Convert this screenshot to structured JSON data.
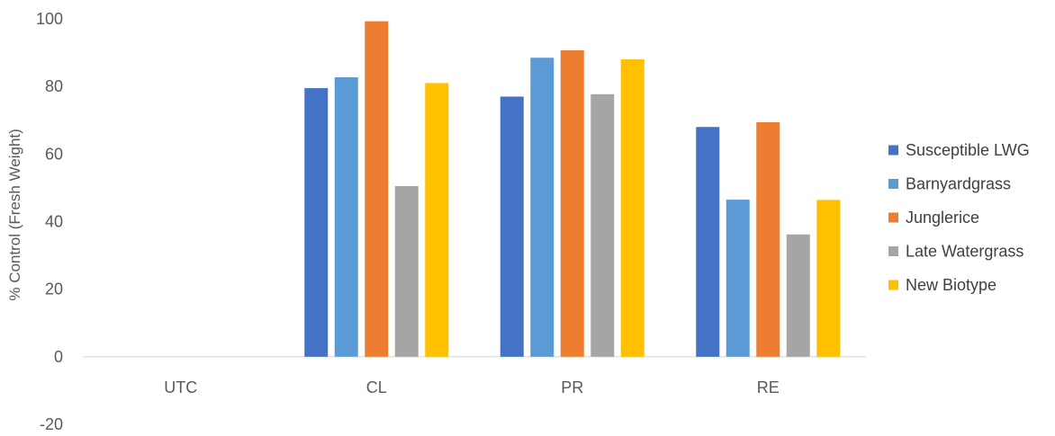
{
  "chart_data": {
    "type": "bar",
    "title": "",
    "xlabel": "",
    "ylabel": "% Control (Fresh Weight)",
    "categories": [
      "UTC",
      "CL",
      "PR",
      "RE"
    ],
    "series": [
      {
        "name": "Susceptible LWG",
        "color": "#4472C4",
        "values": [
          0,
          79.5,
          77,
          68
        ]
      },
      {
        "name": "Barnyardgrass",
        "color": "#5B9BD5",
        "values": [
          0,
          82.7,
          88.5,
          46.5
        ]
      },
      {
        "name": "Junglerice",
        "color": "#ED7D31",
        "values": [
          0,
          99.3,
          90.7,
          69.4
        ]
      },
      {
        "name": "Late Watergrass",
        "color": "#A5A5A5",
        "values": [
          0,
          50.5,
          77.7,
          36.2
        ]
      },
      {
        "name": "New Biotype",
        "color": "#FFC000",
        "values": [
          0,
          81,
          88,
          46.4
        ]
      }
    ],
    "ylim": [
      -20,
      100
    ],
    "yticks": [
      -20,
      0,
      20,
      40,
      60,
      80,
      100
    ],
    "grid": false,
    "legend_position": "right"
  }
}
